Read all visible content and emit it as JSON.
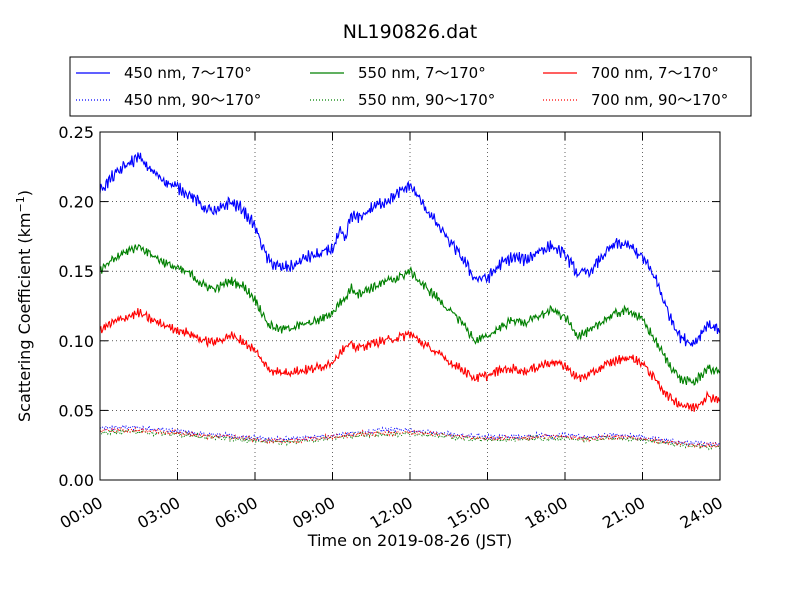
{
  "chart_data": {
    "type": "line",
    "title": "NL190826.dat",
    "xlabel": "Time on 2019-08-26 (JST)",
    "ylabel_text": "Scattering Coefficient (km",
    "ylabel_sup": "−1",
    "ylabel_close": ")",
    "xlim": [
      0,
      24
    ],
    "ylim": [
      0,
      0.25
    ],
    "x_ticks": [
      0,
      3,
      6,
      9,
      12,
      15,
      18,
      21,
      24
    ],
    "x_tick_labels": [
      "00:00",
      "03:00",
      "06:00",
      "09:00",
      "12:00",
      "15:00",
      "18:00",
      "21:00",
      "24:00"
    ],
    "y_ticks": [
      0,
      0.05,
      0.1,
      0.15,
      0.2,
      0.25
    ],
    "y_tick_labels": [
      "0.00",
      "0.05",
      "0.10",
      "0.15",
      "0.20",
      "0.25"
    ],
    "grid": true,
    "legend_placement": "above plot",
    "series": [
      {
        "name": "450 nm, 7～170°",
        "color": "#0000ff",
        "style": "solid",
        "x": [
          0,
          0.5,
          1,
          1.5,
          2,
          2.5,
          3,
          3.5,
          4,
          4.5,
          5,
          5.5,
          6,
          6.5,
          7,
          7.5,
          8,
          8.5,
          9,
          9.3,
          9.5,
          9.7,
          10,
          10.5,
          11,
          11.5,
          12,
          12.5,
          13,
          13.5,
          14,
          14.5,
          15,
          15.5,
          16,
          16.5,
          17,
          17.5,
          18,
          18.5,
          19,
          19.5,
          20,
          20.5,
          21,
          21.5,
          22,
          22.5,
          23,
          23.5,
          24
        ],
        "y": [
          0.208,
          0.218,
          0.226,
          0.232,
          0.222,
          0.215,
          0.21,
          0.205,
          0.196,
          0.192,
          0.2,
          0.195,
          0.182,
          0.158,
          0.152,
          0.154,
          0.16,
          0.162,
          0.166,
          0.178,
          0.172,
          0.19,
          0.188,
          0.195,
          0.2,
          0.205,
          0.212,
          0.198,
          0.185,
          0.172,
          0.16,
          0.145,
          0.145,
          0.155,
          0.16,
          0.158,
          0.165,
          0.168,
          0.162,
          0.148,
          0.15,
          0.162,
          0.17,
          0.168,
          0.16,
          0.145,
          0.12,
          0.102,
          0.098,
          0.112,
          0.108
        ]
      },
      {
        "name": "550 nm, 7～170°",
        "color": "#008000",
        "style": "solid",
        "x": [
          0,
          0.5,
          1,
          1.5,
          2,
          2.5,
          3,
          3.5,
          4,
          4.5,
          5,
          5.5,
          6,
          6.5,
          7,
          7.5,
          8,
          8.5,
          9,
          9.3,
          9.5,
          9.7,
          10,
          10.5,
          11,
          11.5,
          12,
          12.5,
          13,
          13.5,
          14,
          14.5,
          15,
          15.5,
          16,
          16.5,
          17,
          17.5,
          18,
          18.5,
          19,
          19.5,
          20,
          20.5,
          21,
          21.5,
          22,
          22.5,
          23,
          23.5,
          24
        ],
        "y": [
          0.15,
          0.158,
          0.164,
          0.168,
          0.162,
          0.156,
          0.152,
          0.148,
          0.14,
          0.137,
          0.143,
          0.14,
          0.13,
          0.112,
          0.108,
          0.11,
          0.112,
          0.115,
          0.12,
          0.128,
          0.13,
          0.138,
          0.134,
          0.138,
          0.142,
          0.145,
          0.15,
          0.14,
          0.132,
          0.122,
          0.114,
          0.1,
          0.103,
          0.11,
          0.115,
          0.113,
          0.118,
          0.122,
          0.117,
          0.104,
          0.107,
          0.115,
          0.12,
          0.122,
          0.115,
          0.1,
          0.084,
          0.072,
          0.07,
          0.08,
          0.078
        ]
      },
      {
        "name": "700 nm, 7～170°",
        "color": "#ff0000",
        "style": "solid",
        "x": [
          0,
          0.5,
          1,
          1.5,
          2,
          2.5,
          3,
          3.5,
          4,
          4.5,
          5,
          5.5,
          6,
          6.5,
          7,
          7.5,
          8,
          8.5,
          9,
          9.3,
          9.5,
          9.7,
          10,
          10.5,
          11,
          11.5,
          12,
          12.5,
          13,
          13.5,
          14,
          14.5,
          15,
          15.5,
          16,
          16.5,
          17,
          17.5,
          18,
          18.5,
          19,
          19.5,
          20,
          20.5,
          21,
          21.5,
          22,
          22.5,
          23,
          23.5,
          24
        ],
        "y": [
          0.108,
          0.113,
          0.117,
          0.12,
          0.115,
          0.111,
          0.108,
          0.105,
          0.1,
          0.099,
          0.104,
          0.1,
          0.093,
          0.08,
          0.077,
          0.078,
          0.079,
          0.081,
          0.085,
          0.092,
          0.095,
          0.097,
          0.095,
          0.098,
          0.1,
          0.102,
          0.105,
          0.098,
          0.092,
          0.085,
          0.08,
          0.073,
          0.075,
          0.079,
          0.08,
          0.078,
          0.082,
          0.085,
          0.082,
          0.073,
          0.076,
          0.082,
          0.086,
          0.088,
          0.084,
          0.072,
          0.06,
          0.054,
          0.052,
          0.06,
          0.058
        ]
      },
      {
        "name": "450 nm, 90～170°",
        "color": "#0000ff",
        "style": "dotted",
        "x": [
          0,
          1,
          2,
          3,
          4,
          5,
          6,
          7,
          8,
          9,
          10,
          11,
          12,
          13,
          14,
          15,
          16,
          17,
          18,
          19,
          20,
          21,
          22,
          23,
          24
        ],
        "y": [
          0.037,
          0.038,
          0.037,
          0.035,
          0.033,
          0.032,
          0.03,
          0.029,
          0.03,
          0.032,
          0.034,
          0.036,
          0.036,
          0.034,
          0.032,
          0.031,
          0.031,
          0.032,
          0.032,
          0.031,
          0.032,
          0.031,
          0.028,
          0.026,
          0.026
        ]
      },
      {
        "name": "550 nm, 90～170°",
        "color": "#008000",
        "style": "dotted",
        "x": [
          0,
          1,
          2,
          3,
          4,
          5,
          6,
          7,
          8,
          9,
          10,
          11,
          12,
          13,
          14,
          15,
          16,
          17,
          18,
          19,
          20,
          21,
          22,
          23,
          24
        ],
        "y": [
          0.034,
          0.035,
          0.034,
          0.033,
          0.031,
          0.03,
          0.028,
          0.027,
          0.028,
          0.03,
          0.032,
          0.033,
          0.033,
          0.032,
          0.03,
          0.029,
          0.029,
          0.03,
          0.03,
          0.029,
          0.03,
          0.029,
          0.026,
          0.024,
          0.024
        ]
      },
      {
        "name": "700 nm, 90～170°",
        "color": "#ff0000",
        "style": "dotted",
        "x": [
          0,
          1,
          2,
          3,
          4,
          5,
          6,
          7,
          8,
          9,
          10,
          11,
          12,
          13,
          14,
          15,
          16,
          17,
          18,
          19,
          20,
          21,
          22,
          23,
          24
        ],
        "y": [
          0.035,
          0.036,
          0.035,
          0.034,
          0.032,
          0.031,
          0.029,
          0.028,
          0.029,
          0.031,
          0.033,
          0.034,
          0.034,
          0.033,
          0.031,
          0.03,
          0.03,
          0.031,
          0.031,
          0.03,
          0.031,
          0.03,
          0.027,
          0.025,
          0.025
        ]
      }
    ]
  }
}
